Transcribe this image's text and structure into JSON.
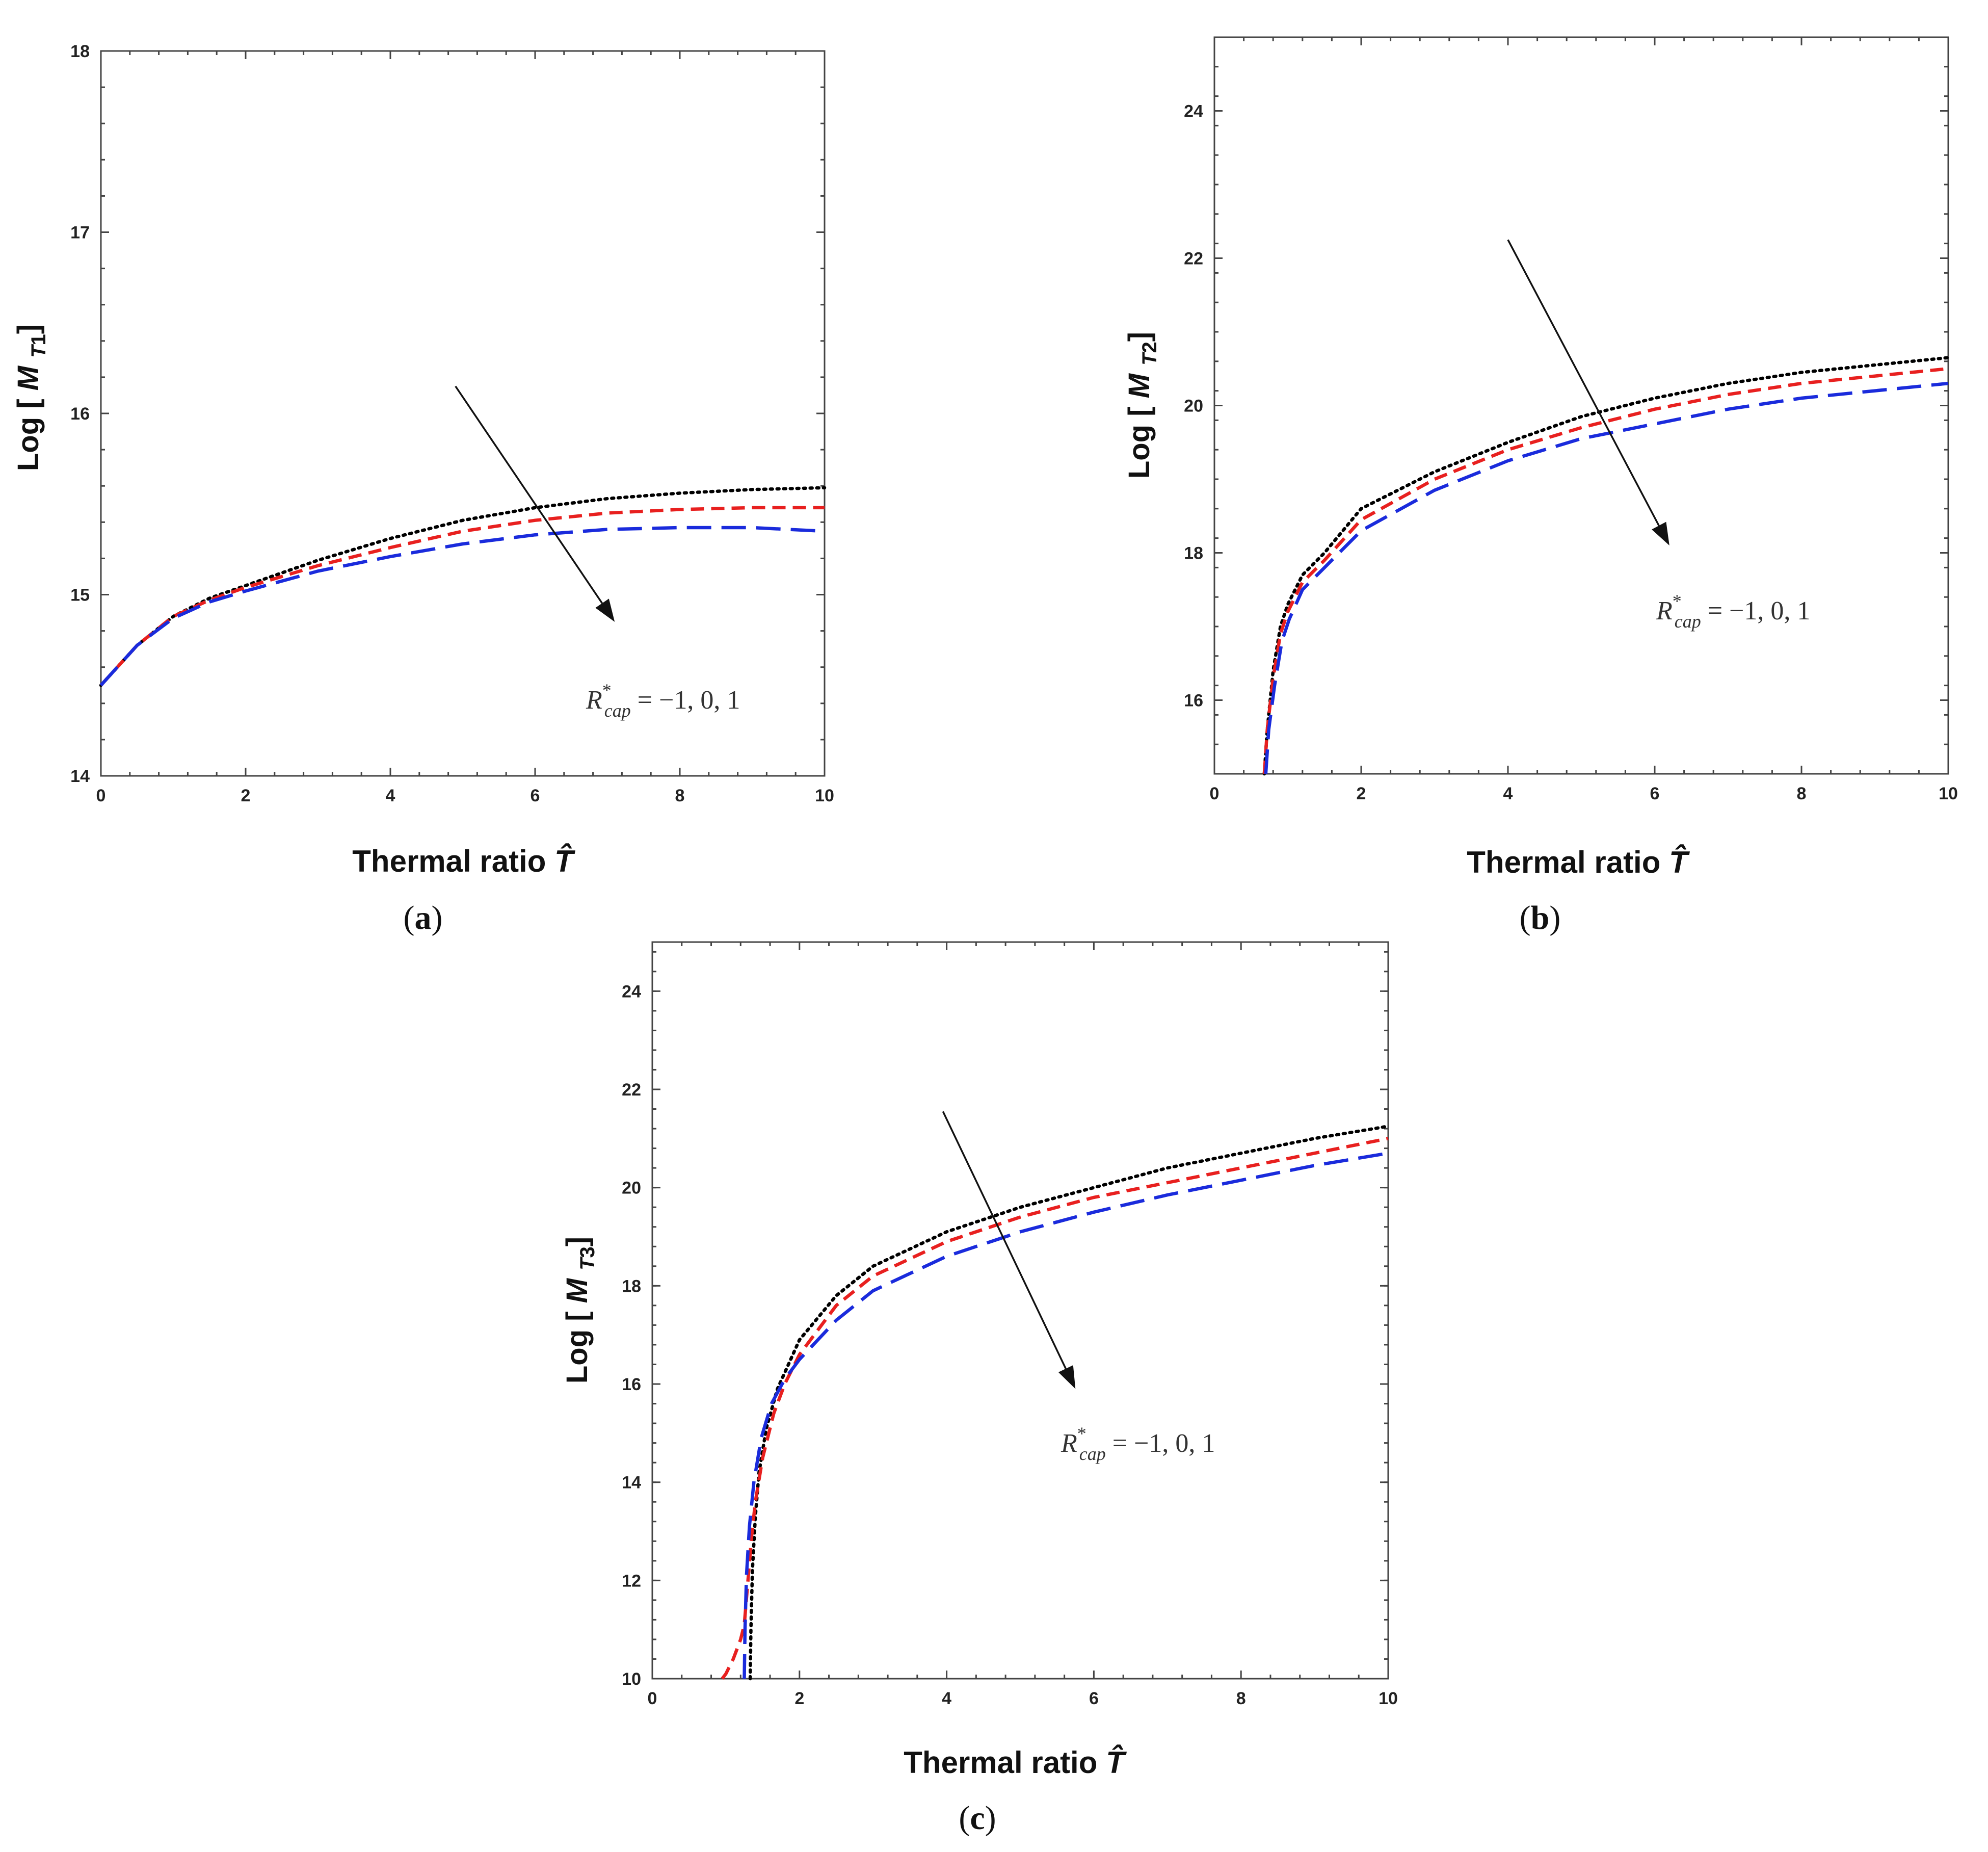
{
  "figure": {
    "panels": [
      "(a)",
      "(b)",
      "(c)"
    ]
  },
  "chart_data": [
    {
      "id": "a",
      "type": "line",
      "panel_label": "(a)",
      "panel_open": "(",
      "panel_letter": "a",
      "panel_close": ")",
      "xlabel": "Thermal ratio",
      "xlabel_symbol": "T̂",
      "ylabel_prefix": "Log [",
      "ylabel_symbol": "M",
      "ylabel_sub": "T1",
      "ylabel_suffix": "]",
      "xlim": [
        0,
        10
      ],
      "ylim": [
        14,
        18
      ],
      "xticks": [
        0,
        2,
        4,
        6,
        8,
        10
      ],
      "yticks": [
        14,
        15,
        16,
        17,
        18
      ],
      "annotation": {
        "symbol": "R",
        "superscript": "*",
        "subscript": "cap",
        "text": " = −1, 0, 1"
      },
      "arrow": {
        "from": [
          4.9,
          16.15
        ],
        "to": [
          7.1,
          14.85
        ]
      },
      "series": [
        {
          "name": "R*cap = -1",
          "color": "#000000",
          "style": "dotted",
          "x": [
            0,
            0.5,
            1,
            1.5,
            2,
            3,
            4,
            5,
            6,
            7,
            8,
            9,
            10
          ],
          "y": [
            14.5,
            14.72,
            14.88,
            14.98,
            15.05,
            15.19,
            15.31,
            15.41,
            15.48,
            15.53,
            15.56,
            15.58,
            15.59
          ]
        },
        {
          "name": "R*cap = 0",
          "color": "#e8201f",
          "style": "dashed",
          "x": [
            0,
            0.5,
            1,
            1.5,
            2,
            3,
            4,
            5,
            6,
            7,
            8,
            9,
            10
          ],
          "y": [
            14.5,
            14.72,
            14.88,
            14.97,
            15.04,
            15.16,
            15.26,
            15.35,
            15.41,
            15.45,
            15.47,
            15.48,
            15.48
          ]
        },
        {
          "name": "R*cap = 1",
          "color": "#1a2bdc",
          "style": "longdash",
          "x": [
            0,
            0.5,
            1,
            1.5,
            2,
            3,
            4,
            5,
            6,
            7,
            8,
            9,
            10
          ],
          "y": [
            14.5,
            14.72,
            14.87,
            14.96,
            15.02,
            15.13,
            15.21,
            15.28,
            15.33,
            15.36,
            15.37,
            15.37,
            15.35
          ]
        }
      ]
    },
    {
      "id": "b",
      "type": "line",
      "panel_label": "(b)",
      "panel_open": "(",
      "panel_letter": "b",
      "panel_close": ")",
      "xlabel": "Thermal ratio",
      "xlabel_symbol": "T̂",
      "ylabel_prefix": "Log [",
      "ylabel_symbol": "M",
      "ylabel_sub": "T2",
      "ylabel_suffix": "]",
      "xlim": [
        0,
        10
      ],
      "ylim": [
        15,
        25
      ],
      "xticks": [
        0,
        2,
        4,
        6,
        8,
        10
      ],
      "yticks": [
        16,
        18,
        20,
        22,
        24
      ],
      "annotation": {
        "symbol": "R",
        "superscript": "*",
        "subscript": "cap",
        "text": " = −1, 0, 1"
      },
      "arrow": {
        "from": [
          4.0,
          22.25
        ],
        "to": [
          6.2,
          18.1
        ]
      },
      "series": [
        {
          "name": "R*cap = -1",
          "color": "#000000",
          "style": "dotted",
          "x": [
            0.68,
            0.72,
            0.8,
            0.9,
            1.0,
            1.2,
            1.5,
            2,
            3,
            4,
            5,
            6,
            7,
            8,
            9,
            10
          ],
          "y": [
            15.0,
            15.6,
            16.4,
            17.0,
            17.3,
            17.7,
            18.0,
            18.6,
            19.1,
            19.5,
            19.85,
            20.1,
            20.3,
            20.45,
            20.55,
            20.65
          ]
        },
        {
          "name": "R*cap = 0",
          "color": "#e8201f",
          "style": "dashed",
          "x": [
            0.68,
            0.72,
            0.8,
            0.9,
            1.0,
            1.2,
            1.5,
            2,
            3,
            4,
            5,
            6,
            7,
            8,
            9,
            10
          ],
          "y": [
            15.0,
            15.6,
            16.3,
            16.9,
            17.2,
            17.6,
            17.9,
            18.45,
            19.0,
            19.4,
            19.7,
            19.95,
            20.15,
            20.3,
            20.4,
            20.5
          ]
        },
        {
          "name": "R*cap = 1",
          "color": "#1a2bdc",
          "style": "longdash",
          "x": [
            0.7,
            0.74,
            0.82,
            0.92,
            1.02,
            1.2,
            1.5,
            2,
            3,
            4,
            5,
            6,
            7,
            8,
            9,
            10
          ],
          "y": [
            15.0,
            15.6,
            16.2,
            16.8,
            17.1,
            17.5,
            17.8,
            18.3,
            18.85,
            19.25,
            19.55,
            19.75,
            19.95,
            20.1,
            20.2,
            20.3
          ]
        }
      ]
    },
    {
      "id": "c",
      "type": "line",
      "panel_label": "(c)",
      "panel_open": "(",
      "panel_letter": "c",
      "panel_close": ")",
      "xlabel": "Thermal ratio",
      "xlabel_symbol": "T̂",
      "ylabel_prefix": "Log [",
      "ylabel_symbol": "M",
      "ylabel_sub": "T3",
      "ylabel_suffix": "]",
      "xlim": [
        0,
        10
      ],
      "ylim": [
        10,
        25
      ],
      "xticks": [
        0,
        2,
        4,
        6,
        8,
        10
      ],
      "yticks": [
        10,
        12,
        14,
        16,
        18,
        20,
        22,
        24
      ],
      "annotation": {
        "symbol": "R",
        "superscript": "*",
        "subscript": "cap",
        "text": " = −1, 0, 1"
      },
      "arrow": {
        "from": [
          3.95,
          21.55
        ],
        "to": [
          5.75,
          15.9
        ]
      },
      "series": [
        {
          "name": "R*cap = -1",
          "color": "#000000",
          "style": "dotted",
          "x": [
            1.33,
            1.34,
            1.36,
            1.4,
            1.45,
            1.55,
            1.7,
            2,
            2.5,
            3,
            4,
            5,
            6,
            7,
            8,
            9,
            10
          ],
          "y": [
            10.0,
            11.0,
            12.2,
            13.3,
            14.2,
            15.1,
            15.9,
            16.9,
            17.8,
            18.4,
            19.1,
            19.6,
            20.0,
            20.4,
            20.7,
            21.0,
            21.25
          ]
        },
        {
          "name": "R*cap = 0",
          "color": "#e8201f",
          "style": "dashed",
          "x": [
            0.95,
            1.0,
            1.05,
            1.1,
            1.15,
            1.2,
            1.25,
            1.3,
            1.35,
            1.4,
            1.5,
            1.65,
            1.8,
            2,
            2.5,
            3,
            4,
            5,
            6,
            7,
            8,
            9,
            10
          ],
          "y": [
            10.0,
            10.1,
            10.25,
            10.4,
            10.6,
            10.8,
            11.1,
            12.0,
            12.9,
            13.6,
            14.5,
            15.4,
            16.0,
            16.6,
            17.6,
            18.2,
            18.9,
            19.4,
            19.8,
            20.1,
            20.4,
            20.7,
            21.0
          ]
        },
        {
          "name": "R*cap = 1",
          "color": "#1a2bdc",
          "style": "longdash",
          "x": [
            1.25,
            1.26,
            1.28,
            1.32,
            1.38,
            1.48,
            1.62,
            1.8,
            2,
            2.5,
            3,
            4,
            5,
            6,
            7,
            8,
            9,
            10
          ],
          "y": [
            10.0,
            11.0,
            12.1,
            13.1,
            14.0,
            14.9,
            15.6,
            16.1,
            16.5,
            17.3,
            17.9,
            18.6,
            19.1,
            19.5,
            19.85,
            20.15,
            20.45,
            20.7
          ]
        }
      ]
    }
  ]
}
